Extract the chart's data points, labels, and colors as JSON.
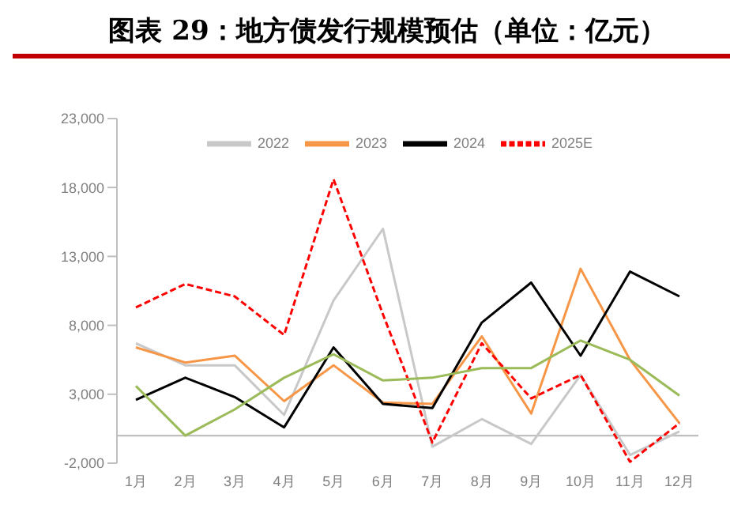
{
  "chart_data": {
    "type": "line",
    "title": "图表 29：地方债发行规模预估（单位：亿元）",
    "categories": [
      "1月",
      "2月",
      "3月",
      "4月",
      "5月",
      "6月",
      "7月",
      "8月",
      "9月",
      "10月",
      "11月",
      "12月"
    ],
    "series": [
      {
        "name": "2022",
        "color": "#c8c8c8",
        "values": [
          6700,
          5100,
          5100,
          1500,
          9800,
          15000,
          -800,
          1200,
          -600,
          4400,
          -1400,
          300
        ]
      },
      {
        "name": "2023",
        "color": "#f79646",
        "values": [
          6400,
          5300,
          5800,
          2500,
          5100,
          2400,
          2300,
          7200,
          1600,
          12100,
          5500,
          900
        ]
      },
      {
        "name": "2024",
        "color": "#000000",
        "values": [
          2600,
          4200,
          2800,
          600,
          6400,
          2300,
          2000,
          8200,
          11100,
          5800,
          11900,
          10100
        ]
      },
      {
        "name": "2025E",
        "color": "#ff0000",
        "line_style": "dashed",
        "values": [
          9300,
          11000,
          10100,
          7300,
          18600,
          8800,
          -500,
          6700,
          2700,
          4400,
          -1900,
          900
        ]
      },
      {
        "color": "#9bbb59",
        "values": [
          3600,
          0,
          1900,
          4200,
          5900,
          4000,
          4200,
          4900,
          4900,
          6900,
          5500,
          2900
        ]
      }
    ],
    "ylim": [
      -2000,
      23000
    ],
    "yticks": [
      {
        "value": -2000,
        "label": "-2,000"
      },
      {
        "value": 3000,
        "label": "3,000"
      },
      {
        "value": 8000,
        "label": "8,000"
      },
      {
        "value": 13000,
        "label": "13,000"
      },
      {
        "value": 18000,
        "label": "18,000"
      },
      {
        "value": 23000,
        "label": "23,000"
      }
    ],
    "ref_lines": [
      {
        "axis": "y",
        "value": 0,
        "color": "#bfbfbf"
      }
    ],
    "grid": false,
    "legend": "top",
    "marker": "none",
    "line_style": "solid"
  }
}
